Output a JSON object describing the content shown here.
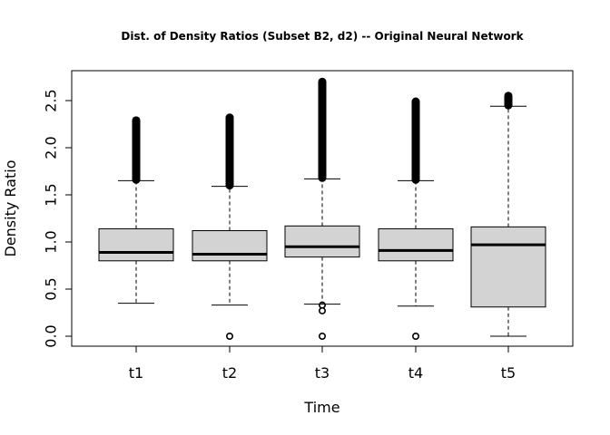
{
  "chart_data": {
    "type": "boxplot",
    "title": "Dist. of Density Ratios (Subset B2, d2) -- Original Neural Network",
    "xlabel": "Time",
    "ylabel": "Density Ratio",
    "categories": [
      "t1",
      "t2",
      "t3",
      "t4",
      "t5"
    ],
    "ylim": [
      -0.1,
      2.8
    ],
    "yticks": [
      0.0,
      0.5,
      1.0,
      1.5,
      2.0,
      2.5
    ],
    "ytick_labels": [
      "0.0",
      "0.5",
      "1.0",
      "1.5",
      "2.0",
      "2.5"
    ],
    "grid": false,
    "box_fill": "#d3d3d3",
    "boxes": [
      {
        "name": "t1",
        "whisker_low": 0.35,
        "q1": 0.8,
        "median": 0.89,
        "q3": 1.14,
        "whisker_high": 1.65,
        "outliers_high": [
          1.66,
          2.29
        ],
        "outliers_low": []
      },
      {
        "name": "t2",
        "whisker_low": 0.33,
        "q1": 0.8,
        "median": 0.87,
        "q3": 1.12,
        "whisker_high": 1.59,
        "outliers_high": [
          1.6,
          2.32
        ],
        "outliers_low": [
          0.0
        ]
      },
      {
        "name": "t3",
        "whisker_low": 0.34,
        "q1": 0.84,
        "median": 0.95,
        "q3": 1.17,
        "whisker_high": 1.67,
        "outliers_high": [
          1.68,
          2.7
        ],
        "outliers_low": [
          0.27,
          0.33,
          0.0
        ]
      },
      {
        "name": "t4",
        "whisker_low": 0.32,
        "q1": 0.8,
        "median": 0.91,
        "q3": 1.14,
        "whisker_high": 1.65,
        "outliers_high": [
          1.66,
          2.49
        ],
        "outliers_low": [
          0.0
        ]
      },
      {
        "name": "t5",
        "whisker_low": 0.0,
        "q1": 0.31,
        "median": 0.97,
        "q3": 1.16,
        "whisker_high": 2.44,
        "outliers_high": [
          2.45,
          2.55
        ],
        "outliers_low": []
      }
    ]
  }
}
